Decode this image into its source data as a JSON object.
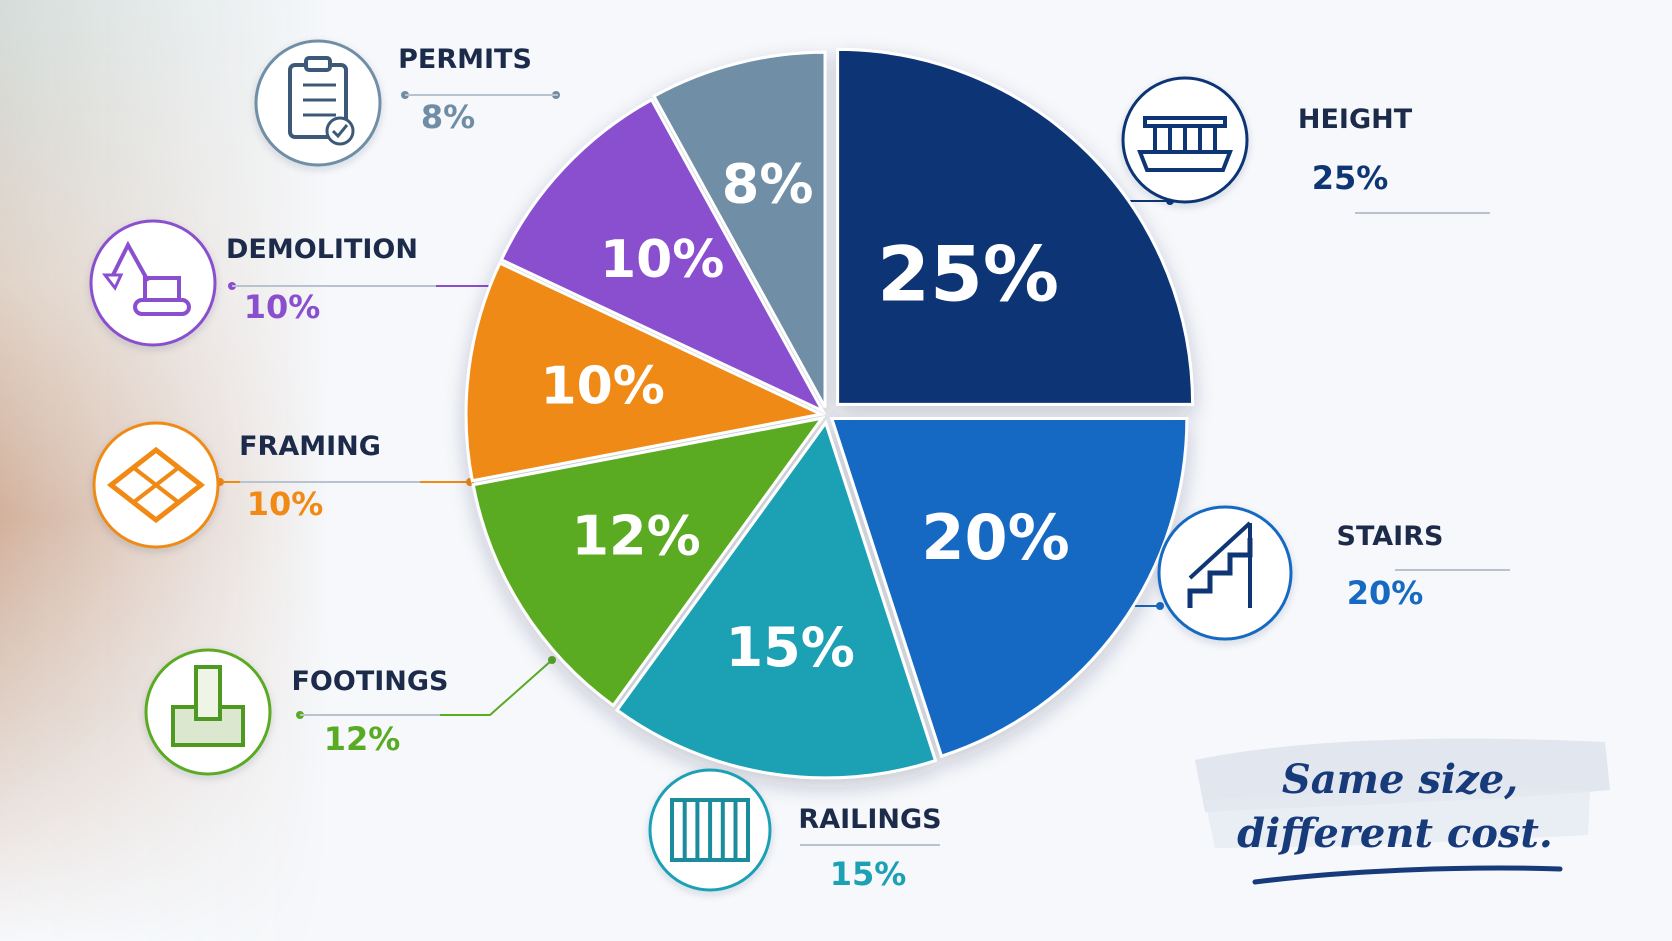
{
  "chart_data": {
    "type": "pie",
    "slices": [
      {
        "label": "HEIGHT",
        "value": 25,
        "display": "25%",
        "color": "#0f3674",
        "icon": "deck-icon"
      },
      {
        "label": "STAIRS",
        "value": 20,
        "display": "20%",
        "color": "#1869c2",
        "icon": "stairs-icon"
      },
      {
        "label": "RAILINGS",
        "value": 15,
        "display": "15%",
        "color": "#1ba0b4",
        "icon": "railing-icon"
      },
      {
        "label": "FOOTINGS",
        "value": 12,
        "display": "12%",
        "color": "#5aab24",
        "icon": "footing-icon"
      },
      {
        "label": "FRAMING",
        "value": 10,
        "display": "10%",
        "color": "#f08a14",
        "icon": "framing-icon"
      },
      {
        "label": "DEMOLITION",
        "value": 10,
        "display": "10%",
        "color": "#8a4fcf",
        "icon": "excavator-icon"
      },
      {
        "label": "PERMITS",
        "value": 8,
        "display": "8%",
        "color": "#6f8ea6",
        "icon": "clipboard-icon"
      }
    ]
  },
  "tagline": {
    "line1": "Same size,",
    "line2": "different cost."
  }
}
